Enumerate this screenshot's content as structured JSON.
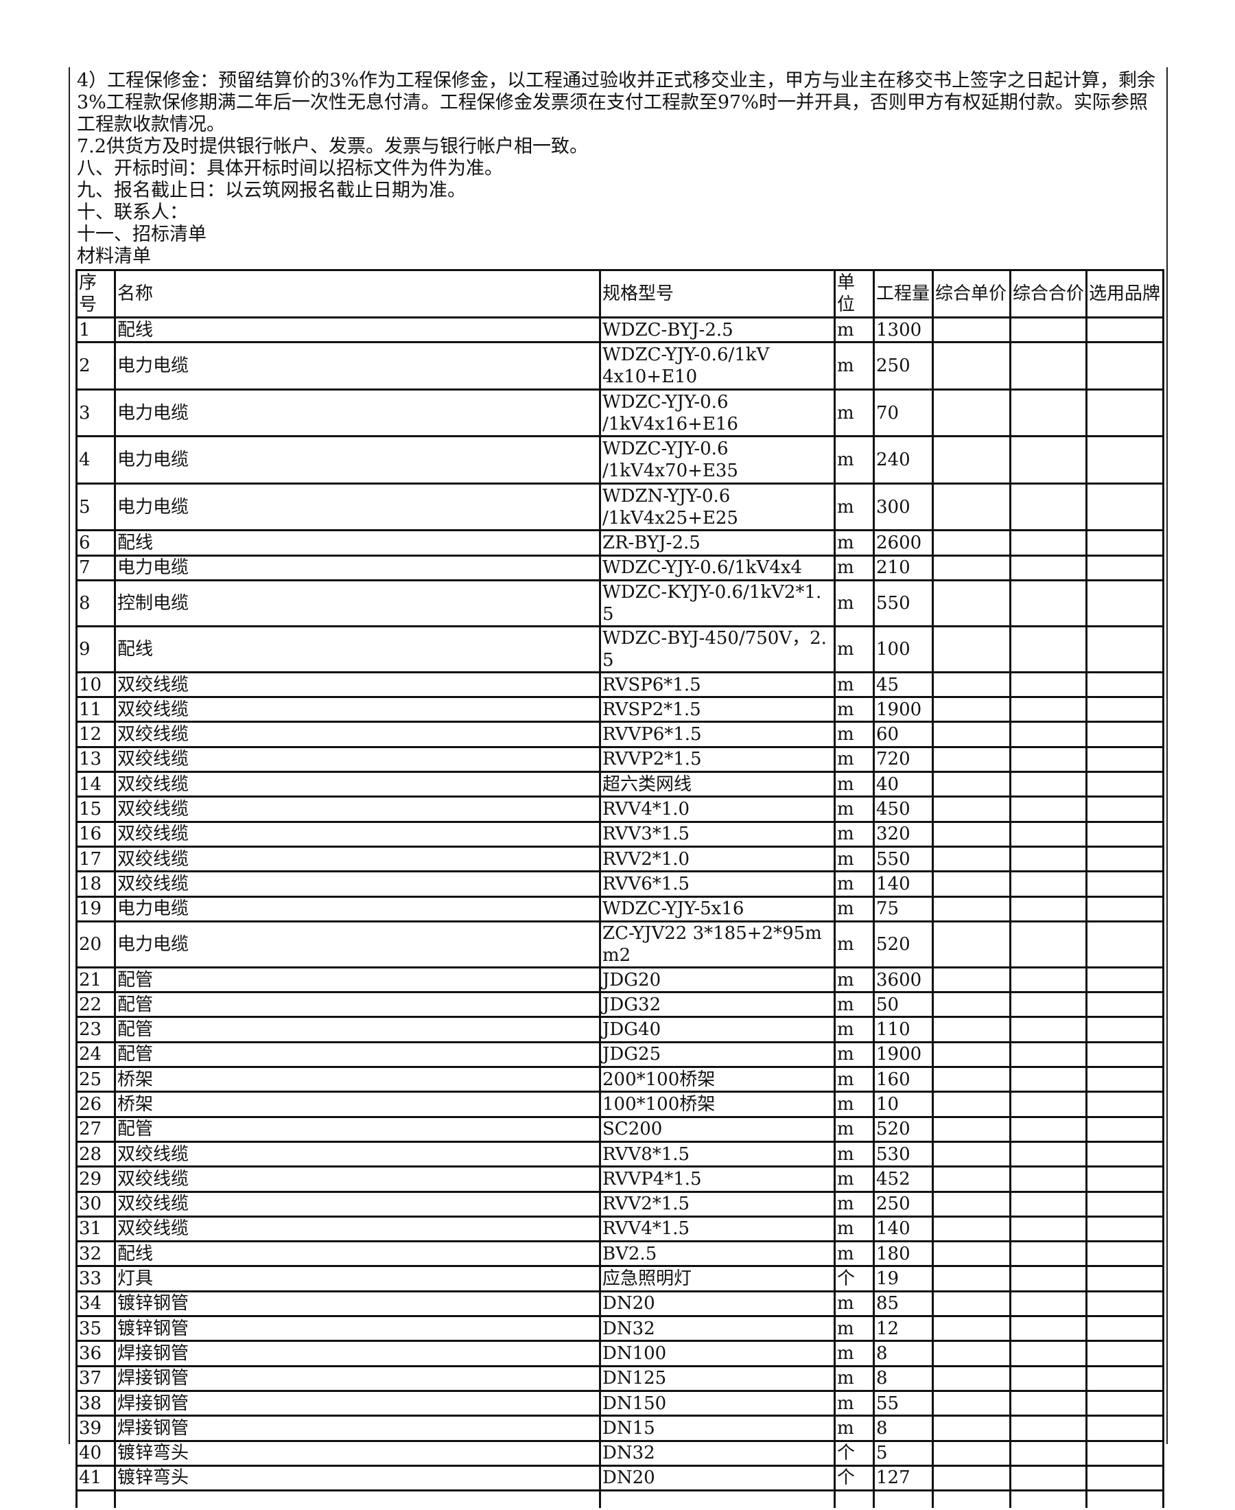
{
  "intro": [
    "4）工程保修金：预留结算价的3%作为工程保修金，以工程通过验收并正式移交业主，甲方与业主在移交书上签字之日起计算，剩余3%工程款保修期满二年后一次性无息付清。工程保修金发票须在支付工程款至97%时一并开具，否则甲方有权延期付款。实际参照工程款收款情况。",
    "7.2供货方及时提供银行帐户、发票。发票与银行帐户相一致。",
    "八、开标时间：具体开标时间以招标文件为件为准。",
    "九、报名截止日：以云筑网报名截止日期为准。",
    "十、联系人：",
    "十一、招标清单",
    "材料清单"
  ],
  "table": {
    "header": [
      "序号",
      "名称",
      "规格型号",
      "单位",
      "工程量",
      "综合单价",
      "综合合价",
      "选用品牌"
    ],
    "rows": [
      [
        1,
        "配线",
        "WDZC-BYJ-2.5",
        "m",
        1300
      ],
      [
        2,
        "电力电缆",
        "WDZC-YJY-0.6/1kV\n4x10+E10",
        "m",
        250
      ],
      [
        3,
        "电力电缆",
        "WDZC-YJY-0.6\n/1kV4x16+E16",
        "m",
        70
      ],
      [
        4,
        "电力电缆",
        "WDZC-YJY-0.6\n/1kV4x70+E35",
        "m",
        240
      ],
      [
        5,
        "电力电缆",
        "WDZN-YJY-0.6\n/1kV4x25+E25",
        "m",
        300
      ],
      [
        6,
        "配线",
        "ZR-BYJ-2.5",
        "m",
        2600
      ],
      [
        7,
        "电力电缆",
        "WDZC-YJY-0.6/1kV4x4",
        "m",
        210
      ],
      [
        8,
        "控制电缆",
        "WDZC-KYJY-0.6/1kV2*1.5",
        "m",
        550
      ],
      [
        9,
        "配线",
        "WDZC-BYJ-450/750V，2.5",
        "m",
        100
      ],
      [
        10,
        "双绞线缆",
        "RVSP6*1.5",
        "m",
        45
      ],
      [
        11,
        "双绞线缆",
        "RVSP2*1.5",
        "m",
        1900
      ],
      [
        12,
        "双绞线缆",
        "RVVP6*1.5",
        "m",
        60
      ],
      [
        13,
        "双绞线缆",
        "RVVP2*1.5",
        "m",
        720
      ],
      [
        14,
        "双绞线缆",
        "超六类网线",
        "m",
        40
      ],
      [
        15,
        "双绞线缆",
        "RVV4*1.0",
        "m",
        450
      ],
      [
        16,
        "双绞线缆",
        "RVV3*1.5",
        "m",
        320
      ],
      [
        17,
        "双绞线缆",
        "RVV2*1.0",
        "m",
        550
      ],
      [
        18,
        "双绞线缆",
        "RVV6*1.5",
        "m",
        140
      ],
      [
        19,
        "电力电缆",
        "WDZC-YJY-5x16",
        "m",
        75
      ],
      [
        20,
        "电力电缆",
        "ZC-YJV22 3*185+2*95mm2",
        "m",
        520
      ],
      [
        21,
        "配管",
        "JDG20",
        "m",
        3600
      ],
      [
        22,
        "配管",
        "JDG32",
        "m",
        50
      ],
      [
        23,
        "配管",
        "JDG40",
        "m",
        110
      ],
      [
        24,
        "配管",
        "JDG25",
        "m",
        1900
      ],
      [
        25,
        "桥架",
        "200*100桥架",
        "m",
        160
      ],
      [
        26,
        "桥架",
        "100*100桥架",
        "m",
        10
      ],
      [
        27,
        "配管",
        "SC200",
        "m",
        520
      ],
      [
        28,
        "双绞线缆",
        "RVV8*1.5",
        "m",
        530
      ],
      [
        29,
        "双绞线缆",
        "RVVP4*1.5",
        "m",
        452
      ],
      [
        30,
        "双绞线缆",
        "RVV2*1.5",
        "m",
        250
      ],
      [
        31,
        "双绞线缆",
        "RVV4*1.5",
        "m",
        140
      ],
      [
        32,
        "配线",
        "BV2.5",
        "m",
        180
      ],
      [
        33,
        "灯具",
        "应急照明灯",
        "个",
        19
      ],
      [
        34,
        "镀锌钢管",
        "DN20",
        "m",
        85
      ],
      [
        35,
        "镀锌钢管",
        "DN32",
        "m",
        12
      ],
      [
        36,
        "焊接钢管",
        "DN100",
        "m",
        8
      ],
      [
        37,
        "焊接钢管",
        "DN125",
        "m",
        8
      ],
      [
        38,
        "焊接钢管",
        "DN150",
        "m",
        55
      ],
      [
        39,
        "焊接钢管",
        "DN15",
        "m",
        8
      ],
      [
        40,
        "镀锌弯头",
        "DN32",
        "个",
        5
      ],
      [
        41,
        "镀锌弯头",
        "DN20",
        "个",
        127
      ]
    ]
  }
}
